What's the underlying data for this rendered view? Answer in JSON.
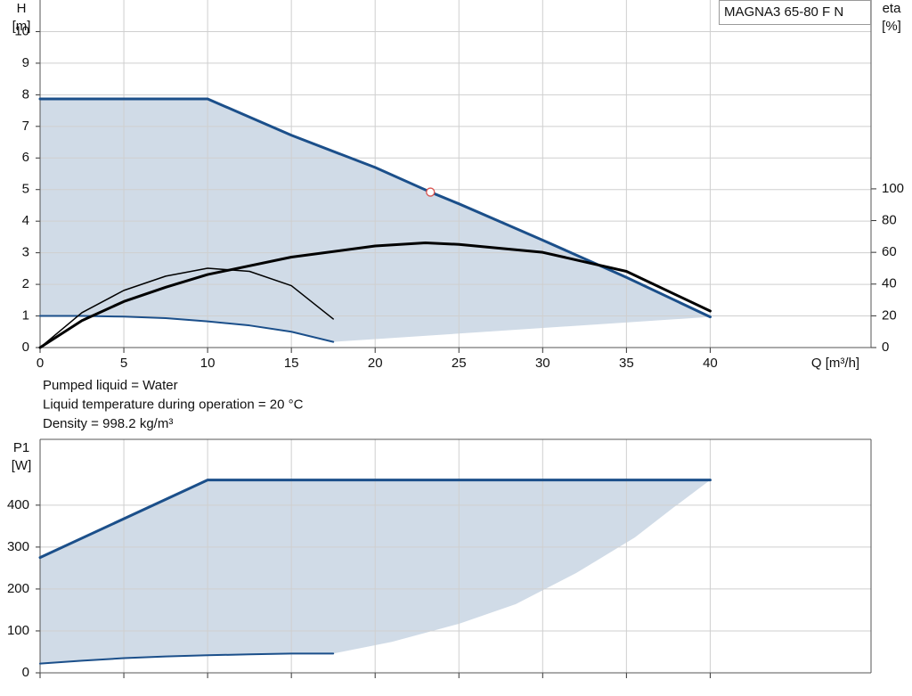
{
  "chart_data": [
    {
      "type": "line",
      "title": "MAGNA3 65-80 F N",
      "ylabel": [
        "H",
        "[m]"
      ],
      "y2label": [
        "eta",
        "[%]"
      ],
      "xlabel": "Q [m³/h]",
      "annotations": [
        "Pumped liquid = Water",
        "Liquid temperature during operation = 20 °C",
        "Density = 998.2 kg/m³"
      ],
      "xlim": [
        0,
        49.6
      ],
      "ylim": [
        0,
        11
      ],
      "y2lim": [
        0,
        219
      ],
      "xticks": [
        0,
        5,
        10,
        15,
        20,
        25,
        30,
        35,
        40
      ],
      "yticks": [
        0,
        1,
        2,
        3,
        4,
        5,
        6,
        7,
        8,
        9,
        10
      ],
      "y2ticks": [
        0,
        20,
        40,
        60,
        80,
        100
      ],
      "show_xtick_labels": true,
      "grid": true,
      "fill_color": "#d0dbe7",
      "series": [
        {
          "color": "#1b4f8a",
          "width": 3,
          "band": "top",
          "x": [
            0,
            10,
            15,
            20,
            23.3,
            25,
            30,
            35,
            40
          ],
          "values": [
            7.87,
            7.87,
            6.72,
            5.7,
            4.92,
            4.55,
            3.4,
            2.22,
            0.97
          ]
        },
        {
          "color": "#1b4f8a",
          "width": 2,
          "band": "bottom",
          "x": [
            0,
            2.5,
            5,
            7.5,
            10,
            12.5,
            15,
            17.5
          ],
          "values": [
            1.0,
            1.0,
            0.98,
            0.93,
            0.83,
            0.7,
            0.5,
            0.18
          ]
        },
        {
          "color": "#1b4f8a",
          "width": 0,
          "band": "bottom",
          "x": [
            17.5,
            40
          ],
          "values": [
            0.18,
            0.97
          ]
        },
        {
          "color": "#000000",
          "width": 3,
          "axis": "y2",
          "x": [
            0,
            2.5,
            5,
            7.5,
            10,
            15,
            20,
            23,
            25,
            30,
            35,
            40
          ],
          "values": [
            0,
            17,
            29,
            38,
            46,
            57,
            64,
            66,
            65,
            60,
            48,
            23
          ]
        },
        {
          "color": "#000000",
          "width": 1.5,
          "axis": "y2",
          "x": [
            0,
            2.5,
            5,
            7.5,
            10,
            12.5,
            15,
            17.5
          ],
          "values": [
            0,
            22,
            36,
            45,
            50,
            48,
            39,
            18
          ]
        }
      ],
      "point": {
        "x": 23.3,
        "y": 4.92,
        "color": "#d9534f"
      }
    },
    {
      "type": "line",
      "ylabel": [
        "P1",
        "[W]"
      ],
      "xlim": [
        0,
        49.6
      ],
      "ylim": [
        0,
        557
      ],
      "xticks": [
        0,
        5,
        10,
        15,
        20,
        25,
        30,
        35,
        40
      ],
      "yticks": [
        0,
        100,
        200,
        300,
        400
      ],
      "show_xtick_labels": false,
      "grid": true,
      "fill_color": "#d0dbe7",
      "series": [
        {
          "color": "#1b4f8a",
          "width": 3,
          "band": "top",
          "x": [
            0,
            10,
            40
          ],
          "values": [
            275,
            460,
            460
          ]
        },
        {
          "color": "#1b4f8a",
          "width": 2,
          "band": "bottom",
          "x": [
            0,
            2.5,
            5,
            7.5,
            10,
            12.5,
            15,
            17.5
          ],
          "values": [
            22,
            29,
            35,
            39,
            42,
            44,
            46,
            46
          ]
        },
        {
          "color": "#1b4f8a",
          "width": 0,
          "band": "bottom",
          "x": [
            17.5,
            21,
            25,
            28.4,
            32,
            35.5,
            37.8,
            40
          ],
          "values": [
            46,
            74,
            117,
            164,
            238,
            323,
            394,
            460
          ]
        }
      ]
    }
  ]
}
